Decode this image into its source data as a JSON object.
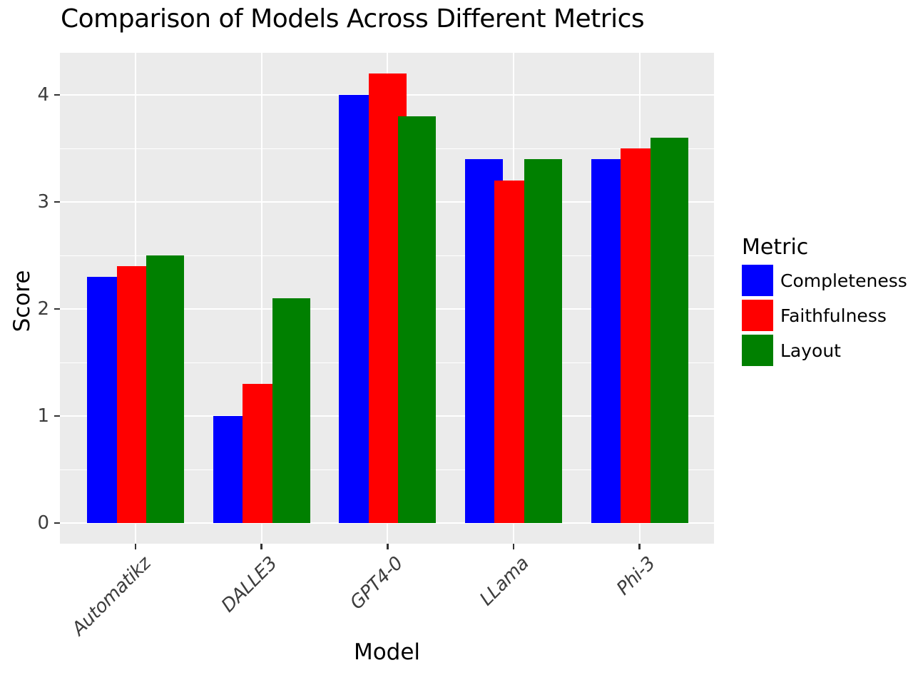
{
  "chart_data": {
    "type": "bar",
    "title": "Comparison of Models Across Different Metrics",
    "xlabel": "Model",
    "ylabel": "Score",
    "categories": [
      "Automatikz",
      "DALLE3",
      "GPT4-0",
      "LLama",
      "Phi-3"
    ],
    "series": [
      {
        "name": "Completeness",
        "color": "#0000ff",
        "values": [
          2.3,
          1.0,
          4.0,
          3.4,
          3.4
        ]
      },
      {
        "name": "Faithfulness",
        "color": "#ff0000",
        "values": [
          2.4,
          1.3,
          4.2,
          3.2,
          3.5
        ]
      },
      {
        "name": "Layout",
        "color": "#008000",
        "values": [
          2.5,
          2.1,
          3.8,
          3.4,
          3.6
        ]
      }
    ],
    "legend": {
      "title": "Metric",
      "position": "right"
    },
    "yticks": [
      0,
      1,
      2,
      3,
      4
    ],
    "minor_yticks": [
      0.5,
      1.5,
      2.5,
      3.5
    ],
    "ylim": [
      0,
      4.4
    ],
    "grid": true,
    "style": {
      "panel_background": "#ebebeb",
      "gridline_color": "#ffffff",
      "tick_label_color": "#3d3d3d",
      "text_color": "#000000"
    }
  }
}
